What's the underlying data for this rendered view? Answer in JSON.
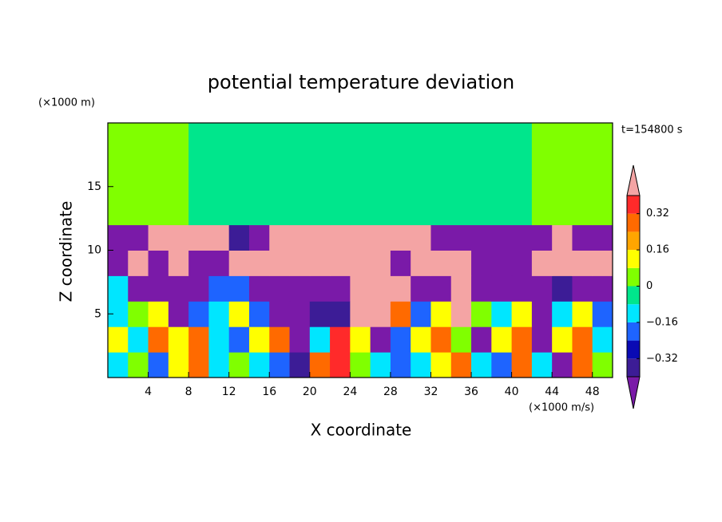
{
  "chart_data": {
    "type": "heatmap",
    "title": "potential temperature deviation",
    "y_unit_label": "(×1000 m)",
    "x_unit_label": "(×1000 m/s)",
    "time_label": "t=154800 s",
    "xlabel": "X coordinate",
    "ylabel": "Z coordinate",
    "xlim": [
      0,
      50
    ],
    "ylim": [
      0,
      20
    ],
    "xticks": [
      4,
      8,
      12,
      16,
      20,
      24,
      28,
      32,
      36,
      40,
      44,
      48
    ],
    "yticks": [
      5,
      10,
      15
    ],
    "x": [
      1,
      3,
      5,
      7,
      9,
      11,
      13,
      15,
      17,
      19,
      21,
      23,
      25,
      27,
      29,
      31,
      33,
      35,
      37,
      39,
      41,
      43,
      45,
      47,
      49
    ],
    "z": [
      1,
      3,
      5,
      7,
      9,
      11,
      13,
      15,
      17,
      19
    ],
    "values": [
      [
        -0.12,
        0.04,
        -0.2,
        0.12,
        0.28,
        -0.12,
        0.04,
        -0.12,
        -0.2,
        -0.36,
        0.28,
        0.36,
        0.04,
        -0.12,
        -0.2,
        -0.12,
        0.12,
        0.28,
        -0.12,
        -0.2,
        0.28,
        -0.12,
        -0.5,
        0.28,
        0.04
      ],
      [
        0.12,
        -0.12,
        0.28,
        0.12,
        0.28,
        -0.12,
        -0.2,
        0.12,
        0.28,
        -0.5,
        -0.12,
        0.36,
        0.12,
        -0.5,
        -0.2,
        0.12,
        0.28,
        0.04,
        -0.5,
        0.12,
        0.28,
        -0.5,
        0.12,
        0.28,
        -0.12
      ],
      [
        -0.12,
        0.04,
        0.12,
        -0.5,
        -0.2,
        -0.12,
        0.12,
        -0.2,
        -0.5,
        -0.5,
        -0.36,
        -0.36,
        0.5,
        0.5,
        0.28,
        -0.2,
        0.12,
        0.5,
        0.04,
        -0.12,
        0.12,
        -0.5,
        -0.12,
        0.12,
        -0.2
      ],
      [
        -0.12,
        -0.5,
        -0.5,
        -0.5,
        -0.5,
        -0.2,
        -0.2,
        -0.5,
        -0.5,
        -0.5,
        -0.5,
        -0.5,
        0.5,
        0.5,
        0.5,
        -0.5,
        -0.5,
        0.5,
        -0.5,
        -0.5,
        -0.5,
        -0.5,
        -0.36,
        -0.5,
        -0.5
      ],
      [
        -0.5,
        0.5,
        -0.5,
        0.5,
        -0.5,
        -0.5,
        0.5,
        0.5,
        0.5,
        0.5,
        0.5,
        0.5,
        0.5,
        0.5,
        -0.5,
        0.5,
        0.5,
        0.5,
        -0.5,
        -0.5,
        -0.5,
        0.5,
        0.5,
        0.5,
        0.5
      ],
      [
        -0.5,
        -0.5,
        0.5,
        0.5,
        0.5,
        0.5,
        -0.36,
        -0.5,
        0.5,
        0.5,
        0.5,
        0.5,
        0.5,
        0.5,
        0.5,
        0.5,
        -0.5,
        -0.5,
        -0.5,
        -0.5,
        -0.5,
        -0.5,
        0.5,
        -0.5,
        -0.5
      ],
      [
        0.04,
        0.04,
        0.04,
        0.04,
        -0.04,
        -0.04,
        -0.04,
        -0.04,
        -0.04,
        -0.04,
        -0.04,
        -0.04,
        -0.04,
        -0.04,
        -0.04,
        -0.04,
        -0.04,
        -0.04,
        -0.04,
        -0.04,
        -0.04,
        0.04,
        0.04,
        0.04,
        0.04
      ],
      [
        0.04,
        0.04,
        0.04,
        0.04,
        -0.04,
        -0.04,
        -0.04,
        -0.04,
        -0.04,
        -0.04,
        -0.04,
        -0.04,
        -0.04,
        -0.04,
        -0.04,
        -0.04,
        -0.04,
        -0.04,
        -0.04,
        -0.04,
        -0.04,
        0.04,
        0.04,
        0.04,
        0.04
      ],
      [
        0.04,
        0.04,
        0.04,
        0.04,
        -0.04,
        -0.04,
        -0.04,
        -0.04,
        -0.04,
        -0.04,
        -0.04,
        -0.04,
        -0.04,
        -0.04,
        -0.04,
        -0.04,
        -0.04,
        -0.04,
        -0.04,
        -0.04,
        -0.04,
        0.04,
        0.04,
        0.04,
        0.04
      ],
      [
        0.04,
        0.04,
        0.04,
        0.04,
        -0.04,
        -0.04,
        -0.04,
        -0.04,
        -0.04,
        -0.04,
        -0.04,
        -0.04,
        -0.04,
        -0.04,
        -0.04,
        -0.04,
        -0.04,
        -0.04,
        -0.04,
        -0.04,
        -0.04,
        0.04,
        0.04,
        0.04,
        0.04
      ]
    ],
    "levels": [
      -0.4,
      -0.32,
      -0.24,
      -0.16,
      -0.08,
      0,
      0.08,
      0.16,
      0.24,
      0.32,
      0.4
    ],
    "colors": [
      "#7a1aa8",
      "#3c1c96",
      "#0a0ab4",
      "#1e64ff",
      "#00e6ff",
      "#00e68c",
      "#80ff00",
      "#ffff00",
      "#ffa500",
      "#ff6a00",
      "#ff2a2a",
      "#f4a4a4"
    ],
    "colorbar_ticks": [
      0.32,
      0.16,
      0,
      {
        "value": -0.16,
        "label": "−0.16"
      },
      {
        "value": -0.32,
        "label": "−0.32"
      }
    ]
  }
}
